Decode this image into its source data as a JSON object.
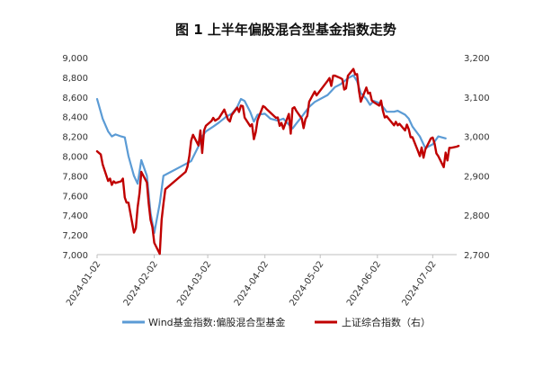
{
  "chart_data": {
    "type": "line",
    "title": "图 1  上半年偏股混合型基金指数走势",
    "x_ticks": [
      "2024-01-02",
      "2024-02-02",
      "2024-03-02",
      "2024-04-02",
      "2024-05-02",
      "2024-06-02",
      "2024-07-02"
    ],
    "y_left": {
      "ticks": [
        "7,000",
        "7,200",
        "7,400",
        "7,600",
        "7,800",
        "8,000",
        "8,200",
        "8,400",
        "8,600",
        "8,800",
        "9,000"
      ],
      "ylim": [
        7000,
        9000
      ]
    },
    "y_right": {
      "ticks": [
        "2,700",
        "2,800",
        "2,900",
        "3,000",
        "3,100",
        "3,200"
      ],
      "ylim": [
        2700,
        3200
      ]
    },
    "grid": false,
    "legend_position": "bottom",
    "series": [
      {
        "name": "Wind基金指数:偏股混合型基金",
        "axis": "left",
        "color": "#5b9bd5",
        "points": [
          [
            "2024-01-02",
            8580
          ],
          [
            "2024-01-05",
            8380
          ],
          [
            "2024-01-08",
            8250
          ],
          [
            "2024-01-10",
            8200
          ],
          [
            "2024-01-12",
            8220
          ],
          [
            "2024-01-15",
            8200
          ],
          [
            "2024-01-17",
            8190
          ],
          [
            "2024-01-19",
            8000
          ],
          [
            "2024-01-22",
            7800
          ],
          [
            "2024-01-24",
            7720
          ],
          [
            "2024-01-26",
            7960
          ],
          [
            "2024-01-29",
            7800
          ],
          [
            "2024-01-31",
            7420
          ],
          [
            "2024-02-02",
            7220
          ],
          [
            "2024-02-05",
            7520
          ],
          [
            "2024-02-07",
            7800
          ],
          [
            "2024-02-19",
            7920
          ],
          [
            "2024-02-22",
            7950
          ],
          [
            "2024-02-26",
            8100
          ],
          [
            "2024-02-28",
            8200
          ],
          [
            "2024-03-01",
            8250
          ],
          [
            "2024-03-05",
            8300
          ],
          [
            "2024-03-08",
            8340
          ],
          [
            "2024-03-12",
            8400
          ],
          [
            "2024-03-15",
            8430
          ],
          [
            "2024-03-18",
            8500
          ],
          [
            "2024-03-20",
            8580
          ],
          [
            "2024-03-22",
            8560
          ],
          [
            "2024-03-25",
            8450
          ],
          [
            "2024-03-27",
            8350
          ],
          [
            "2024-03-29",
            8420
          ],
          [
            "2024-04-02",
            8430
          ],
          [
            "2024-04-05",
            8380
          ],
          [
            "2024-04-09",
            8360
          ],
          [
            "2024-04-12",
            8380
          ],
          [
            "2024-04-15",
            8320
          ],
          [
            "2024-04-17",
            8280
          ],
          [
            "2024-04-19",
            8330
          ],
          [
            "2024-04-22",
            8400
          ],
          [
            "2024-04-24",
            8450
          ],
          [
            "2024-04-26",
            8500
          ],
          [
            "2024-04-29",
            8550
          ],
          [
            "2024-05-06",
            8620
          ],
          [
            "2024-05-08",
            8660
          ],
          [
            "2024-05-10",
            8700
          ],
          [
            "2024-05-13",
            8730
          ],
          [
            "2024-05-15",
            8760
          ],
          [
            "2024-05-17",
            8790
          ],
          [
            "2024-05-20",
            8820
          ],
          [
            "2024-05-22",
            8760
          ],
          [
            "2024-05-24",
            8640
          ],
          [
            "2024-05-27",
            8580
          ],
          [
            "2024-05-29",
            8520
          ],
          [
            "2024-05-31",
            8560
          ],
          [
            "2024-06-03",
            8540
          ],
          [
            "2024-06-05",
            8500
          ],
          [
            "2024-06-07",
            8450
          ],
          [
            "2024-06-11",
            8450
          ],
          [
            "2024-06-13",
            8460
          ],
          [
            "2024-06-17",
            8420
          ],
          [
            "2024-06-19",
            8380
          ],
          [
            "2024-06-21",
            8300
          ],
          [
            "2024-06-25",
            8200
          ],
          [
            "2024-06-27",
            8120
          ],
          [
            "2024-06-28",
            8080
          ],
          [
            "2024-07-02",
            8120
          ],
          [
            "2024-07-05",
            8200
          ],
          [
            "2024-07-09",
            8180
          ]
        ]
      },
      {
        "name": "上证综合指数（右）",
        "axis": "right",
        "color": "#c00000",
        "points": [
          [
            "2024-01-02",
            2962
          ],
          [
            "2024-01-04",
            2954
          ],
          [
            "2024-01-05",
            2929
          ],
          [
            "2024-01-08",
            2887
          ],
          [
            "2024-01-09",
            2893
          ],
          [
            "2024-01-10",
            2877
          ],
          [
            "2024-01-11",
            2886
          ],
          [
            "2024-01-12",
            2882
          ],
          [
            "2024-01-15",
            2886
          ],
          [
            "2024-01-16",
            2893
          ],
          [
            "2024-01-17",
            2845
          ],
          [
            "2024-01-18",
            2832
          ],
          [
            "2024-01-19",
            2832
          ],
          [
            "2024-01-22",
            2756
          ],
          [
            "2024-01-23",
            2767
          ],
          [
            "2024-01-24",
            2820
          ],
          [
            "2024-01-25",
            2856
          ],
          [
            "2024-01-26",
            2910
          ],
          [
            "2024-01-29",
            2883
          ],
          [
            "2024-01-30",
            2830
          ],
          [
            "2024-01-31",
            2788
          ],
          [
            "2024-02-01",
            2770
          ],
          [
            "2024-02-02",
            2730
          ],
          [
            "2024-02-05",
            2702
          ],
          [
            "2024-02-06",
            2789
          ],
          [
            "2024-02-07",
            2829
          ],
          [
            "2024-02-08",
            2866
          ],
          [
            "2024-02-19",
            2910
          ],
          [
            "2024-02-20",
            2923
          ],
          [
            "2024-02-21",
            2950
          ],
          [
            "2024-02-22",
            2989
          ],
          [
            "2024-02-23",
            3004
          ],
          [
            "2024-02-26",
            2977
          ],
          [
            "2024-02-27",
            3015
          ],
          [
            "2024-02-28",
            2958
          ],
          [
            "2024-02-29",
            3015
          ],
          [
            "2024-03-01",
            3027
          ],
          [
            "2024-03-04",
            3039
          ],
          [
            "2024-03-05",
            3047
          ],
          [
            "2024-03-06",
            3040
          ],
          [
            "2024-03-08",
            3046
          ],
          [
            "2024-03-11",
            3068
          ],
          [
            "2024-03-12",
            3055
          ],
          [
            "2024-03-13",
            3043
          ],
          [
            "2024-03-14",
            3038
          ],
          [
            "2024-03-15",
            3054
          ],
          [
            "2024-03-18",
            3073
          ],
          [
            "2024-03-19",
            3062
          ],
          [
            "2024-03-20",
            3078
          ],
          [
            "2024-03-21",
            3077
          ],
          [
            "2024-03-22",
            3048
          ],
          [
            "2024-03-25",
            3026
          ],
          [
            "2024-03-26",
            3031
          ],
          [
            "2024-03-27",
            2993
          ],
          [
            "2024-03-28",
            3010
          ],
          [
            "2024-03-29",
            3041
          ],
          [
            "2024-04-01",
            3077
          ],
          [
            "2024-04-02",
            3074
          ],
          [
            "2024-04-03",
            3069
          ],
          [
            "2024-04-08",
            3047
          ],
          [
            "2024-04-09",
            3048
          ],
          [
            "2024-04-10",
            3027
          ],
          [
            "2024-04-11",
            3034
          ],
          [
            "2024-04-12",
            3019
          ],
          [
            "2024-04-15",
            3057
          ],
          [
            "2024-04-16",
            3007
          ],
          [
            "2024-04-17",
            3071
          ],
          [
            "2024-04-18",
            3074
          ],
          [
            "2024-04-19",
            3065
          ],
          [
            "2024-04-22",
            3045
          ],
          [
            "2024-04-23",
            3021
          ],
          [
            "2024-04-24",
            3044
          ],
          [
            "2024-04-25",
            3052
          ],
          [
            "2024-04-26",
            3088
          ],
          [
            "2024-04-29",
            3114
          ],
          [
            "2024-04-30",
            3104
          ],
          [
            "2024-05-06",
            3141
          ],
          [
            "2024-05-07",
            3148
          ],
          [
            "2024-05-08",
            3128
          ],
          [
            "2024-05-09",
            3154
          ],
          [
            "2024-05-10",
            3154
          ],
          [
            "2024-05-13",
            3148
          ],
          [
            "2024-05-14",
            3145
          ],
          [
            "2024-05-15",
            3119
          ],
          [
            "2024-05-16",
            3122
          ],
          [
            "2024-05-17",
            3154
          ],
          [
            "2024-05-20",
            3171
          ],
          [
            "2024-05-21",
            3157
          ],
          [
            "2024-05-22",
            3158
          ],
          [
            "2024-05-23",
            3116
          ],
          [
            "2024-05-24",
            3088
          ],
          [
            "2024-05-27",
            3124
          ],
          [
            "2024-05-28",
            3109
          ],
          [
            "2024-05-29",
            3111
          ],
          [
            "2024-05-30",
            3091
          ],
          [
            "2024-05-31",
            3087
          ],
          [
            "2024-06-03",
            3078
          ],
          [
            "2024-06-04",
            3091
          ],
          [
            "2024-06-05",
            3065
          ],
          [
            "2024-06-06",
            3048
          ],
          [
            "2024-06-07",
            3051
          ],
          [
            "2024-06-11",
            3028
          ],
          [
            "2024-06-12",
            3037
          ],
          [
            "2024-06-13",
            3028
          ],
          [
            "2024-06-14",
            3032
          ],
          [
            "2024-06-17",
            3015
          ],
          [
            "2024-06-18",
            3030
          ],
          [
            "2024-06-19",
            3018
          ],
          [
            "2024-06-20",
            2998
          ],
          [
            "2024-06-21",
            2998
          ],
          [
            "2024-06-24",
            2963
          ],
          [
            "2024-06-25",
            2950
          ],
          [
            "2024-06-26",
            2972
          ],
          [
            "2024-06-27",
            2946
          ],
          [
            "2024-06-28",
            2967
          ],
          [
            "2024-07-01",
            2995
          ],
          [
            "2024-07-02",
            2997
          ],
          [
            "2024-07-03",
            2982
          ],
          [
            "2024-07-04",
            2957
          ],
          [
            "2024-07-05",
            2950
          ],
          [
            "2024-07-08",
            2922
          ],
          [
            "2024-07-09",
            2959
          ],
          [
            "2024-07-10",
            2939
          ],
          [
            "2024-07-11",
            2971
          ],
          [
            "2024-07-12",
            2971
          ],
          [
            "2024-07-15",
            2974
          ],
          [
            "2024-07-16",
            2976
          ]
        ]
      }
    ]
  }
}
